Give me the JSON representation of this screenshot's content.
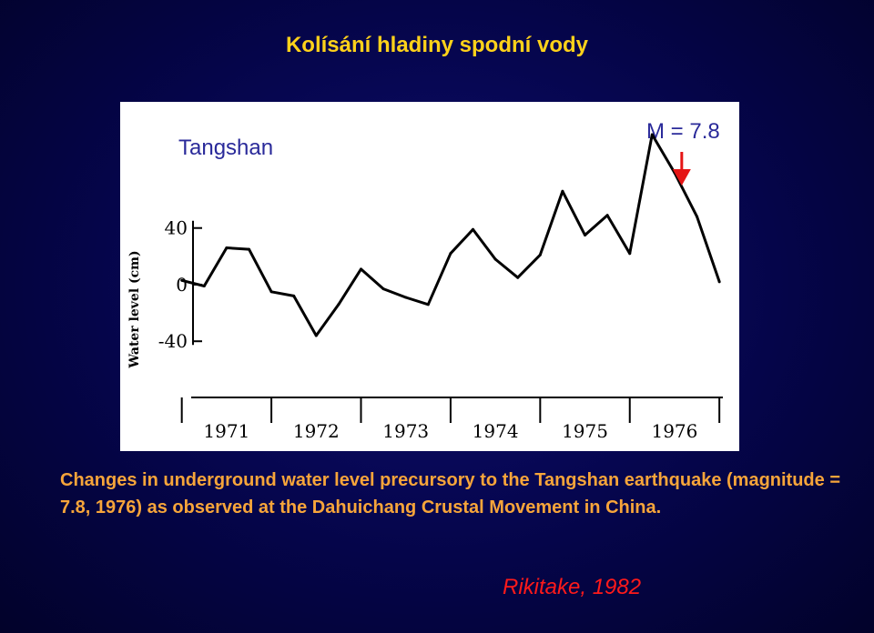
{
  "slide": {
    "title": "Kolísání hladiny spodní vody",
    "caption": "Changes in underground water level precursory to the Tangshan earthquake (magnitude = 7.8, 1976) as observed at the Dahuichang Crustal Movement in China.",
    "citation": "Rikitake, 1982"
  },
  "colors": {
    "background": "#05054a",
    "title": "#ffd21a",
    "caption": "#f7a53a",
    "citation": "#ff1a1a",
    "label_blue": "#2a2a9a",
    "arrow": "#e51515",
    "line": "#000000"
  },
  "chart_data": {
    "type": "line",
    "title": "Tangshan",
    "annotation": "M = 7.8",
    "annotation_marker": "red arrow pointing down at earthquake time",
    "ylabel": "Water level (cm)",
    "ytick_labels": [
      "40",
      "0",
      "-40"
    ],
    "ytick_values": [
      40,
      0,
      -40
    ],
    "ylim": [
      -45,
      115
    ],
    "xlim": [
      1970.8,
      1977.1
    ],
    "xtick_labels": [
      "1971",
      "1972",
      "1973",
      "1974",
      "1975",
      "1976"
    ],
    "xtick_positions": [
      1971.5,
      1972.5,
      1973.5,
      1974.5,
      1975.5,
      1976.5
    ],
    "earthquake_x": 1976.58,
    "grid": false,
    "series": [
      {
        "x": [
          1971.0,
          1971.25,
          1971.5,
          1971.75,
          1972.0,
          1972.25,
          1972.5,
          1972.75,
          1973.0,
          1973.25,
          1973.5,
          1973.75,
          1974.0,
          1974.25,
          1974.5,
          1974.75,
          1975.0,
          1975.25,
          1975.5,
          1975.75,
          1976.0,
          1976.25,
          1976.5,
          1976.75,
          1977.0
        ],
        "values": [
          3,
          -1,
          26,
          25,
          -5,
          -8,
          -36,
          -14,
          11,
          -3,
          -9,
          -14,
          22,
          39,
          18,
          5,
          21,
          66,
          35,
          49,
          22,
          106,
          79,
          48,
          2
        ]
      }
    ]
  }
}
